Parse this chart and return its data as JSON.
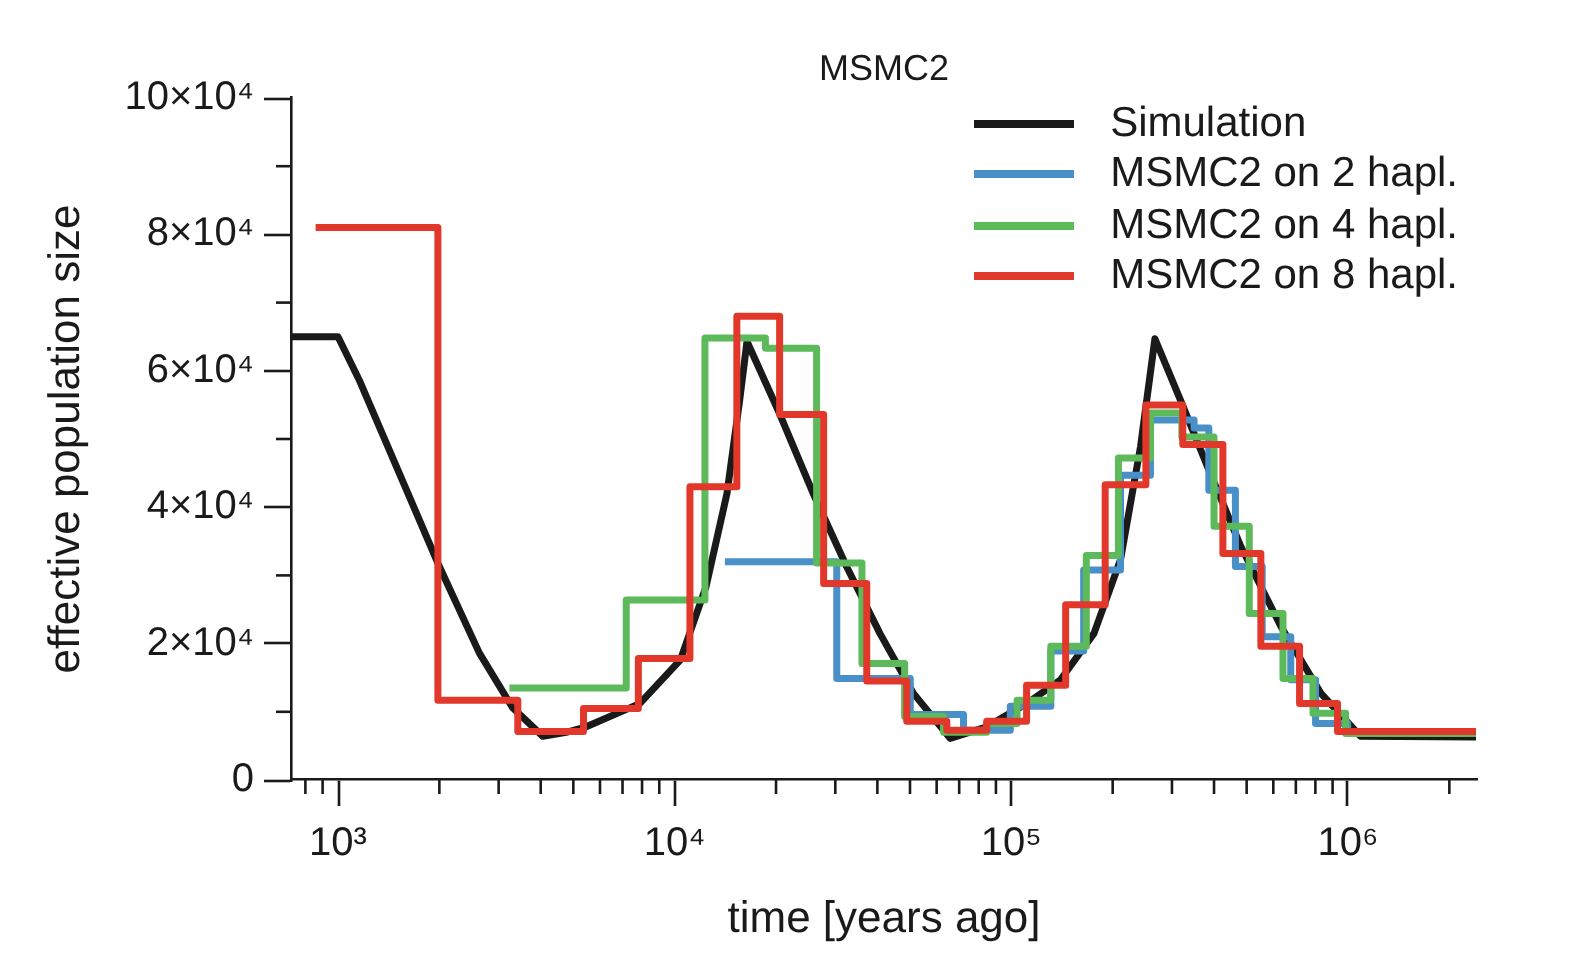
{
  "chart_data": {
    "type": "step",
    "title": "MSMC2",
    "xlabel": "time [years ago]",
    "ylabel": "effective population size",
    "log": "x",
    "marker": "none",
    "legend": "top right",
    "xlim": [
      730,
      2400000
    ],
    "xticks": [
      {
        "value": 800,
        "label": null
      },
      {
        "value": 900,
        "label": null
      },
      {
        "value": 1000,
        "label": "10³"
      },
      {
        "value": 2000,
        "label": null
      },
      {
        "value": 3000,
        "label": null
      },
      {
        "value": 4000,
        "label": null
      },
      {
        "value": 5000,
        "label": null
      },
      {
        "value": 6000,
        "label": null
      },
      {
        "value": 7000,
        "label": null
      },
      {
        "value": 8000,
        "label": null
      },
      {
        "value": 9000,
        "label": null
      },
      {
        "value": 10000,
        "label": "10⁴"
      },
      {
        "value": 20000,
        "label": null
      },
      {
        "value": 30000,
        "label": null
      },
      {
        "value": 40000,
        "label": null
      },
      {
        "value": 50000,
        "label": null
      },
      {
        "value": 60000,
        "label": null
      },
      {
        "value": 70000,
        "label": null
      },
      {
        "value": 80000,
        "label": null
      },
      {
        "value": 90000,
        "label": null
      },
      {
        "value": 100000,
        "label": "10⁵"
      },
      {
        "value": 200000,
        "label": null
      },
      {
        "value": 300000,
        "label": null
      },
      {
        "value": 400000,
        "label": null
      },
      {
        "value": 500000,
        "label": null
      },
      {
        "value": 600000,
        "label": null
      },
      {
        "value": 700000,
        "label": null
      },
      {
        "value": 800000,
        "label": null
      },
      {
        "value": 900000,
        "label": null
      },
      {
        "value": 1000000,
        "label": "10⁶"
      },
      {
        "value": 2000000,
        "label": null
      }
    ],
    "ylim": [
      0,
      100000
    ],
    "yticks": [
      0,
      {
        "value": 10000,
        "label": null
      },
      {
        "value": 20000,
        "label": "2×10⁴"
      },
      {
        "value": 30000,
        "label": null
      },
      {
        "value": 40000,
        "label": "4×10⁴"
      },
      {
        "value": 50000,
        "label": null
      },
      {
        "value": 60000,
        "label": "6×10⁴"
      },
      {
        "value": 70000,
        "label": null
      },
      {
        "value": 80000,
        "label": "8×10⁴"
      },
      {
        "value": 90000,
        "label": null
      },
      {
        "value": 100000,
        "label": "10×10⁴"
      }
    ],
    "series": [
      {
        "name": "Simulation",
        "type": "line",
        "color": "#1a1a1a",
        "x": [
          730,
          1000,
          1155,
          1520,
          2000,
          2630,
          3300,
          4060,
          4760,
          5460,
          7870,
          10400,
          12400,
          14300,
          15600,
          16400,
          20500,
          25800,
          32400,
          40700,
          51200,
          65800,
          84500,
          111000,
          140000,
          176000,
          211000,
          242000,
          267000,
          318000,
          382000,
          481000,
          632000,
          831000,
          1090000,
          2400000
        ],
        "values": [
          65000,
          65000,
          58700,
          45000,
          31300,
          18600,
          10600,
          6400,
          7000,
          7800,
          11200,
          17600,
          28400,
          42000,
          55700,
          64300,
          53700,
          42000,
          31300,
          21500,
          12700,
          6100,
          7800,
          11200,
          14700,
          21500,
          32300,
          48900,
          64700,
          55700,
          46000,
          34200,
          22500,
          12700,
          6400,
          6300
        ]
      },
      {
        "name": "MSMC2 on 2 hapl.",
        "color": "#4a90c8",
        "x": [
          14100,
          30300,
          50100,
          72100,
          99300,
          131000,
          164000,
          211000,
          259000,
          349000,
          386000,
          463000,
          556000,
          676000,
          801000,
          998000,
          2400000
        ],
        "values": [
          32000,
          14900,
          9600,
          7300,
          10800,
          18900,
          30800,
          44700,
          52800,
          51600,
          42500,
          31300,
          21000,
          14700,
          8300,
          6800,
          6800
        ]
      },
      {
        "name": "MSMC2 on 4 hapl.",
        "color": "#5cba5a",
        "x": [
          3230,
          7180,
          12300,
          18600,
          26400,
          36000,
          48200,
          62900,
          84500,
          104000,
          131000,
          167000,
          208000,
          259000,
          321000,
          400000,
          509000,
          641000,
          787000,
          984000,
          2400000
        ],
        "values": [
          13500,
          26400,
          64800,
          63300,
          31800,
          17100,
          9300,
          7000,
          8300,
          11700,
          19600,
          32900,
          47200,
          53800,
          50300,
          37200,
          24400,
          14900,
          9800,
          6800,
          6800
        ]
      },
      {
        "name": "MSMC2 on 8 hapl.",
        "color": "#e2382b",
        "x": [
          858,
          1980,
          3420,
          5360,
          7800,
          11100,
          15300,
          20500,
          27700,
          37200,
          48900,
          64300,
          84500,
          111000,
          145000,
          190000,
          251000,
          323000,
          425000,
          551000,
          718000,
          931000,
          2400000
        ],
        "values": [
          81000,
          11700,
          7100,
          10500,
          17800,
          43000,
          68000,
          53600,
          28800,
          14500,
          8600,
          7300,
          8600,
          13900,
          25700,
          43300,
          55000,
          49200,
          33200,
          19600,
          11200,
          7100,
          7100
        ]
      }
    ]
  }
}
